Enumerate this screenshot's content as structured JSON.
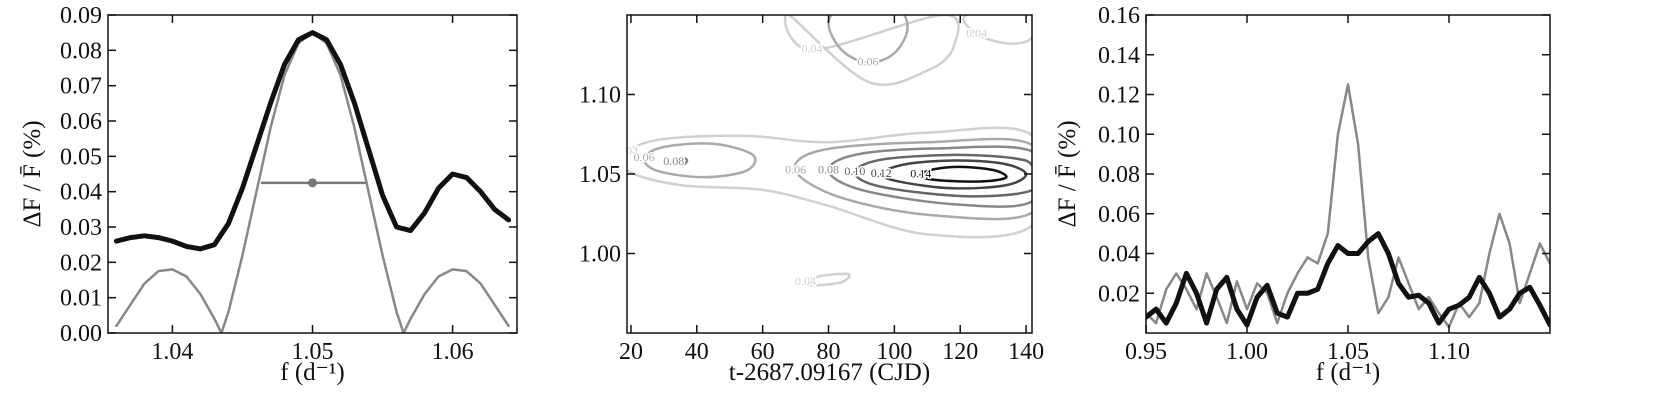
{
  "chart_data": [
    {
      "type": "line",
      "xlabel": "f (d⁻¹)",
      "ylabel": "ΔF / F̄ (%)",
      "xlim": [
        1.0354,
        1.0646
      ],
      "ylim": [
        0,
        0.09
      ],
      "xticks": [
        1.04,
        1.05,
        1.06
      ],
      "yticks": [
        {
          "value": 0,
          "label": "0.00"
        },
        0.01,
        0.02,
        0.03,
        0.04,
        0.05,
        0.06,
        0.07,
        0.08,
        0.09
      ],
      "series": [
        {
          "color": "#888888",
          "linewidth": 2.5,
          "x": [
            1.036,
            1.037,
            1.038,
            1.039,
            1.04,
            1.041,
            1.042,
            1.043,
            1.0435,
            1.044,
            1.045,
            1.046,
            1.047,
            1.048,
            1.049,
            1.05,
            1.051,
            1.052,
            1.053,
            1.054,
            1.055,
            1.056,
            1.0565,
            1.057,
            1.058,
            1.059,
            1.06,
            1.061,
            1.062,
            1.063,
            1.064
          ],
          "values": [
            0.002,
            0.008,
            0.014,
            0.0175,
            0.018,
            0.016,
            0.011,
            0.004,
            0,
            0.006,
            0.022,
            0.04,
            0.058,
            0.073,
            0.082,
            0.085,
            0.082,
            0.073,
            0.058,
            0.04,
            0.022,
            0.006,
            0,
            0.004,
            0.011,
            0.016,
            0.018,
            0.0175,
            0.014,
            0.008,
            0.002
          ]
        },
        {
          "color": "#111111",
          "linewidth": 5,
          "x": [
            1.036,
            1.037,
            1.038,
            1.039,
            1.04,
            1.041,
            1.042,
            1.043,
            1.044,
            1.045,
            1.046,
            1.047,
            1.048,
            1.049,
            1.05,
            1.051,
            1.052,
            1.053,
            1.054,
            1.055,
            1.056,
            1.057,
            1.058,
            1.059,
            1.06,
            1.061,
            1.062,
            1.063,
            1.064
          ],
          "values": [
            0.026,
            0.027,
            0.0275,
            0.027,
            0.026,
            0.0245,
            0.0238,
            0.025,
            0.031,
            0.041,
            0.053,
            0.065,
            0.076,
            0.083,
            0.085,
            0.083,
            0.076,
            0.065,
            0.052,
            0.039,
            0.03,
            0.029,
            0.034,
            0.041,
            0.045,
            0.044,
            0.04,
            0.035,
            0.032
          ]
        },
        {
          "color": "#777777",
          "linewidth": 2.5,
          "x": [
            1.0464,
            1.0537
          ],
          "values": [
            0.0425,
            0.0425
          ]
        },
        {
          "color": "#777777",
          "marker": true,
          "x": [
            1.05
          ],
          "values": [
            0.0425
          ]
        }
      ]
    },
    {
      "type": "contour",
      "xlabel": "t-2687.09167 (CJD)",
      "xlim": [
        18.8,
        141.8
      ],
      "ylim": [
        0.95,
        1.15
      ],
      "xticks": [
        20,
        40,
        60,
        80,
        100,
        120,
        140
      ],
      "yticks": [
        {
          "value": 1.0,
          "label": "1.00"
        },
        1.05,
        {
          "value": 1.1,
          "label": "1.10"
        }
      ],
      "contours": [
        {
          "level": 0.04,
          "color": "#d0d0d0",
          "x": [
            19,
            30,
            55,
            80,
            110,
            142,
            142,
            110,
            80,
            60,
            35,
            19
          ],
          "y": [
            1.064,
            1.072,
            1.074,
            1.07,
            1.076,
            1.074,
            1.018,
            1.012,
            1.03,
            1.04,
            1.043,
            1.052
          ]
        },
        {
          "level": 0.04,
          "color": "#d0d0d0",
          "x": [
            75,
            68,
            92,
            110,
            118,
            115
          ],
          "y": [
            1.128,
            1.15,
            1.108,
            1.115,
            1.13,
            1.15
          ]
        },
        {
          "level": 0.04,
          "color": "#d0d0d0",
          "x": [
            125,
            122,
            142,
            142,
            135
          ],
          "y": [
            1.138,
            1.15,
            1.15,
            1.136,
            1.132
          ]
        },
        {
          "level": 0.04,
          "color": "#d0d0d0",
          "x": [
            73,
            78,
            86,
            84,
            76
          ],
          "y": [
            0.982,
            0.986,
            0.987,
            0.982,
            0.98
          ]
        },
        {
          "level": 0.06,
          "color": "#aaaaaa",
          "x": [
            24,
            30,
            45,
            57,
            55,
            42,
            28
          ],
          "y": [
            1.06,
            1.067,
            1.069,
            1.062,
            1.052,
            1.048,
            1.052
          ]
        },
        {
          "level": 0.06,
          "color": "#aaaaaa",
          "x": [
            70,
            78,
            110,
            142,
            142,
            112,
            84
          ],
          "y": [
            1.052,
            1.065,
            1.07,
            1.068,
            1.026,
            1.024,
            1.035
          ]
        },
        {
          "level": 0.06,
          "color": "#aaaaaa",
          "x": [
            92,
            100,
            104,
            100,
            85,
            80,
            84
          ],
          "y": [
            1.12,
            1.126,
            1.142,
            1.155,
            1.155,
            1.145,
            1.128
          ]
        },
        {
          "level": 0.08,
          "color": "#888888",
          "x": [
            80,
            88,
            112,
            142,
            142,
            118,
            90
          ],
          "y": [
            1.052,
            1.062,
            1.066,
            1.064,
            1.033,
            1.031,
            1.04
          ]
        },
        {
          "level": 0.08,
          "color": "#888888",
          "x": [
            33,
            35,
            37,
            36
          ],
          "y": [
            1.0575,
            1.06,
            1.059,
            1.056
          ]
        },
        {
          "level": {
            "value": 0.1,
            "label": "0.10"
          },
          "color": "#666666",
          "x": [
            88,
            96,
            118,
            136,
            142,
            142,
            122,
            96
          ],
          "y": [
            1.051,
            1.059,
            1.062,
            1.06,
            1.055,
            1.04,
            1.036,
            1.042
          ]
        },
        {
          "level": 0.12,
          "color": "#444444",
          "x": [
            96,
            103,
            118,
            133,
            140,
            134,
            118,
            102
          ],
          "y": [
            1.05,
            1.056,
            1.0585,
            1.0565,
            1.05,
            1.043,
            1.041,
            1.045
          ]
        },
        {
          "level": 0.14,
          "color": "#111111",
          "x": [
            108,
            112,
            120,
            130,
            134,
            128,
            118,
            110
          ],
          "y": [
            1.0495,
            1.053,
            1.0545,
            1.0525,
            1.048,
            1.0455,
            1.0455,
            1.047
          ]
        }
      ]
    },
    {
      "type": "line",
      "xlabel": "f (d⁻¹)",
      "ylabel": "ΔF / F̄ (%)",
      "xlim": [
        0.95,
        1.15
      ],
      "ylim": [
        0,
        0.16
      ],
      "xticks": [
        0.95,
        {
          "value": 1.0,
          "label": "1.00"
        },
        1.05,
        {
          "value": 1.1,
          "label": "1.10"
        }
      ],
      "yticks": [
        0.02,
        0.04,
        0.06,
        0.08,
        {
          "value": 0.1,
          "label": "0.10"
        },
        0.12,
        0.14,
        {
          "value": 0.16,
          "label": "0.16"
        }
      ],
      "series": [
        {
          "color": "#888888",
          "linewidth": 2.5,
          "x": [
            0.95,
            0.955,
            0.96,
            0.965,
            0.97,
            0.975,
            0.98,
            0.985,
            0.99,
            0.995,
            1.0,
            1.005,
            1.01,
            1.015,
            1.02,
            1.025,
            1.03,
            1.035,
            1.04,
            1.045,
            1.05,
            1.055,
            1.06,
            1.065,
            1.07,
            1.075,
            1.08,
            1.085,
            1.09,
            1.095,
            1.1,
            1.105,
            1.11,
            1.115,
            1.12,
            1.125,
            1.13,
            1.135,
            1.14,
            1.145,
            1.15
          ],
          "values": [
            0.01,
            0.005,
            0.022,
            0.03,
            0.022,
            0.012,
            0.03,
            0.018,
            0.005,
            0.026,
            0.012,
            0.025,
            0.02,
            0.005,
            0.02,
            0.03,
            0.038,
            0.035,
            0.05,
            0.1,
            0.125,
            0.095,
            0.038,
            0.01,
            0.018,
            0.038,
            0.025,
            0.012,
            0.018,
            0.01,
            0.003,
            0.015,
            0.008,
            0.015,
            0.04,
            0.06,
            0.045,
            0.015,
            0.03,
            0.045,
            0.035
          ]
        },
        {
          "color": "#111111",
          "linewidth": 5,
          "x": [
            0.95,
            0.955,
            0.96,
            0.965,
            0.97,
            0.975,
            0.98,
            0.985,
            0.99,
            0.995,
            1.0,
            1.005,
            1.01,
            1.015,
            1.02,
            1.025,
            1.03,
            1.035,
            1.04,
            1.045,
            1.05,
            1.055,
            1.06,
            1.065,
            1.07,
            1.075,
            1.08,
            1.085,
            1.09,
            1.095,
            1.1,
            1.105,
            1.11,
            1.115,
            1.12,
            1.125,
            1.13,
            1.135,
            1.14,
            1.145,
            1.15
          ],
          "values": [
            0.008,
            0.012,
            0.005,
            0.015,
            0.03,
            0.02,
            0.005,
            0.022,
            0.028,
            0.012,
            0.004,
            0.018,
            0.024,
            0.01,
            0.008,
            0.02,
            0.02,
            0.022,
            0.035,
            0.044,
            0.04,
            0.04,
            0.046,
            0.05,
            0.04,
            0.025,
            0.018,
            0.019,
            0.015,
            0.005,
            0.012,
            0.014,
            0.018,
            0.028,
            0.02,
            0.008,
            0.012,
            0.02,
            0.023,
            0.014,
            0.004
          ]
        }
      ]
    }
  ]
}
